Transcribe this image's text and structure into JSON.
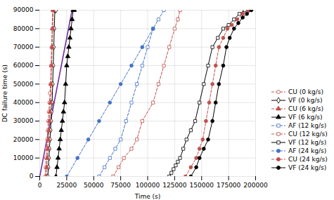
{
  "chart_data": {
    "type": "line",
    "xlabel": "Time (s)",
    "ylabel": "DC failure time (s)",
    "xlim": [
      0,
      200000
    ],
    "ylim": [
      0,
      90000
    ],
    "xticks": [
      0,
      25000,
      50000,
      75000,
      100000,
      125000,
      150000,
      175000,
      200000
    ],
    "yticks": [
      0,
      10000,
      20000,
      30000,
      40000,
      50000,
      60000,
      70000,
      80000,
      90000
    ],
    "grid": true,
    "legend": "lower right",
    "series": [
      {
        "color": "#7030a0",
        "line_style": "solid",
        "x": [
          0,
          30000
        ],
        "values": [
          0,
          90000
        ]
      },
      {
        "name": "CU (0 kg/s)",
        "color": "#c0504d",
        "marker": "circle-open",
        "line_style": "dashed",
        "x": [
          5000,
          5500,
          6000,
          6500,
          7000,
          7500,
          8000,
          8500,
          9000,
          9500,
          10000,
          10500,
          11000,
          11500,
          12000,
          12500,
          13000
        ],
        "values": [
          0,
          5000,
          10000,
          15000,
          20000,
          25000,
          30000,
          35000,
          40000,
          45000,
          50000,
          60000,
          70000,
          80000,
          90000,
          90000,
          90000
        ]
      },
      {
        "name": "VF (0 kg/s)",
        "color": "#000000",
        "marker": "diamond-open",
        "line_style": "solid",
        "x": [
          7500,
          8000,
          8500,
          9000,
          9500,
          10000,
          10500,
          11000,
          11500,
          12000,
          12500,
          13000,
          13500,
          14000,
          14500,
          15000
        ],
        "values": [
          0,
          5000,
          10000,
          15000,
          20000,
          25000,
          30000,
          35000,
          40000,
          50000,
          60000,
          70000,
          80000,
          90000,
          90000,
          90000
        ]
      },
      {
        "name": "CU (6 kg/s)",
        "color": "#c0504d",
        "marker": "triangle",
        "line_style": "dashed",
        "x": [
          6000,
          6500,
          7000,
          7500,
          8000,
          8500,
          9000,
          9500,
          10000,
          10500,
          11000,
          11500,
          12000,
          12500
        ],
        "values": [
          0,
          5000,
          10000,
          15000,
          20000,
          25000,
          30000,
          35000,
          40000,
          50000,
          60000,
          70000,
          80000,
          90000
        ]
      },
      {
        "name": "VF (6 kg/s)",
        "color": "#000000",
        "marker": "triangle",
        "line_style": "solid",
        "x": [
          15000,
          16000,
          17000,
          18000,
          19000,
          20000,
          21000,
          22000,
          23000,
          24000,
          25000,
          26000,
          27000,
          28000,
          29000,
          30000,
          31000,
          32000
        ],
        "values": [
          0,
          5000,
          10000,
          15000,
          20000,
          25000,
          30000,
          35000,
          40000,
          50000,
          60000,
          65000,
          70000,
          75000,
          80000,
          85000,
          90000,
          90000
        ]
      },
      {
        "name": "AF (12 kg/s)",
        "color": "#4472c4",
        "marker": "square-open",
        "line_style": "dashed",
        "x": [
          55000,
          60000,
          65000,
          70000,
          75000,
          80000,
          85000,
          90000,
          95000,
          100000,
          105000,
          110000,
          115000
        ],
        "values": [
          0,
          5000,
          10000,
          15000,
          20000,
          30000,
          40000,
          50000,
          60000,
          70000,
          80000,
          85000,
          90000
        ]
      },
      {
        "name": "CU (12 kg/s)",
        "color": "#c0504d",
        "marker": "square-open",
        "line_style": "dashed",
        "x": [
          68000,
          73000,
          78000,
          85000,
          90000,
          95000,
          105000,
          110000,
          115000,
          120000,
          125000,
          128000,
          130000
        ],
        "values": [
          0,
          5000,
          10000,
          15000,
          20000,
          30000,
          40000,
          50000,
          60000,
          70000,
          80000,
          85000,
          90000
        ]
      },
      {
        "name": "VF (12 kg/s)",
        "color": "#000000",
        "marker": "square-open",
        "line_style": "solid",
        "x": [
          120000,
          122000,
          124000,
          126000,
          128000,
          130000,
          133000,
          136000,
          140000,
          144000,
          148000,
          152000,
          156000,
          160000,
          165000,
          170000,
          175000,
          180000,
          185000,
          190000
        ],
        "values": [
          0,
          2000,
          4000,
          6000,
          8000,
          10000,
          15000,
          20000,
          25000,
          30000,
          40000,
          50000,
          60000,
          70000,
          75000,
          80000,
          82000,
          85000,
          88000,
          90000
        ]
      },
      {
        "name": "AF (24 kg/s)",
        "color": "#4472c4",
        "marker": "circle",
        "line_style": "dashed",
        "x": [
          25000,
          35000,
          45000,
          55000,
          65000,
          75000,
          85000,
          95000,
          105000
        ],
        "values": [
          0,
          10000,
          20000,
          30000,
          40000,
          50000,
          60000,
          70000,
          80000
        ]
      },
      {
        "name": "CU (24 kg/s)",
        "color": "#c0504d",
        "marker": "circle",
        "line_style": "dashed",
        "x": [
          135000,
          140000,
          145000,
          148000,
          151000,
          154000,
          157000,
          160000,
          163000,
          166000,
          170000,
          174000,
          178000,
          183000,
          188000,
          193000
        ],
        "values": [
          0,
          5000,
          10000,
          15000,
          20000,
          30000,
          40000,
          50000,
          60000,
          70000,
          75000,
          80000,
          82000,
          85000,
          88000,
          90000
        ]
      },
      {
        "name": "VF (24 kg/s)",
        "color": "#000000",
        "marker": "circle",
        "line_style": "solid",
        "x": [
          140000,
          145000,
          148000,
          152000,
          156000,
          160000,
          163000,
          166000,
          170000,
          173000,
          176000,
          180000,
          184000,
          188000,
          192000,
          196000
        ],
        "values": [
          0,
          5000,
          10000,
          15000,
          20000,
          30000,
          40000,
          50000,
          60000,
          70000,
          75000,
          80000,
          83000,
          86000,
          88000,
          90000
        ]
      }
    ]
  }
}
